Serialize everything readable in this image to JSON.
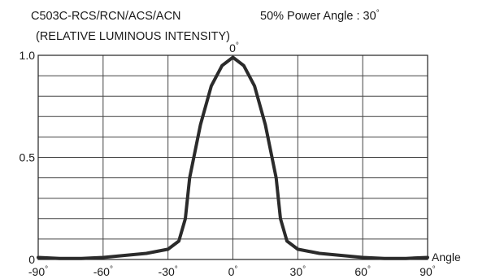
{
  "chart_data": {
    "type": "line",
    "title": "C503C-RCS/RCN/ACS/ACN",
    "power_angle_label": "50% Power Angle : 30",
    "subtitle": "(RELATIVE LUMINOUS INTENSITY)",
    "xlabel": "Angle",
    "ylabel": "",
    "xlim": [
      -90,
      90
    ],
    "ylim": [
      0,
      1.0
    ],
    "x_ticks": [
      -90,
      -60,
      -30,
      0,
      30,
      60,
      90
    ],
    "x_tick_labels": [
      "-90",
      "-60",
      "-30",
      "0",
      "30",
      "60",
      "90"
    ],
    "y_ticks": [
      0,
      0.5,
      1.0
    ],
    "y_tick_labels": [
      "0",
      "0.5",
      "1.0"
    ],
    "top_label": "0",
    "degree_symbol": "°",
    "grid": true,
    "series": [
      {
        "x": [
          -90,
          -80,
          -70,
          -60,
          -50,
          -40,
          -30,
          -25,
          -22,
          -20,
          -15,
          -10,
          -5,
          0,
          5,
          10,
          15,
          20,
          22,
          25,
          30,
          40,
          50,
          60,
          70,
          80,
          90
        ],
        "y": [
          0.01,
          0.005,
          0.005,
          0.01,
          0.02,
          0.03,
          0.05,
          0.09,
          0.2,
          0.4,
          0.66,
          0.85,
          0.95,
          0.99,
          0.95,
          0.85,
          0.66,
          0.4,
          0.2,
          0.09,
          0.05,
          0.03,
          0.02,
          0.01,
          0.005,
          0.005,
          0.01
        ]
      }
    ]
  }
}
